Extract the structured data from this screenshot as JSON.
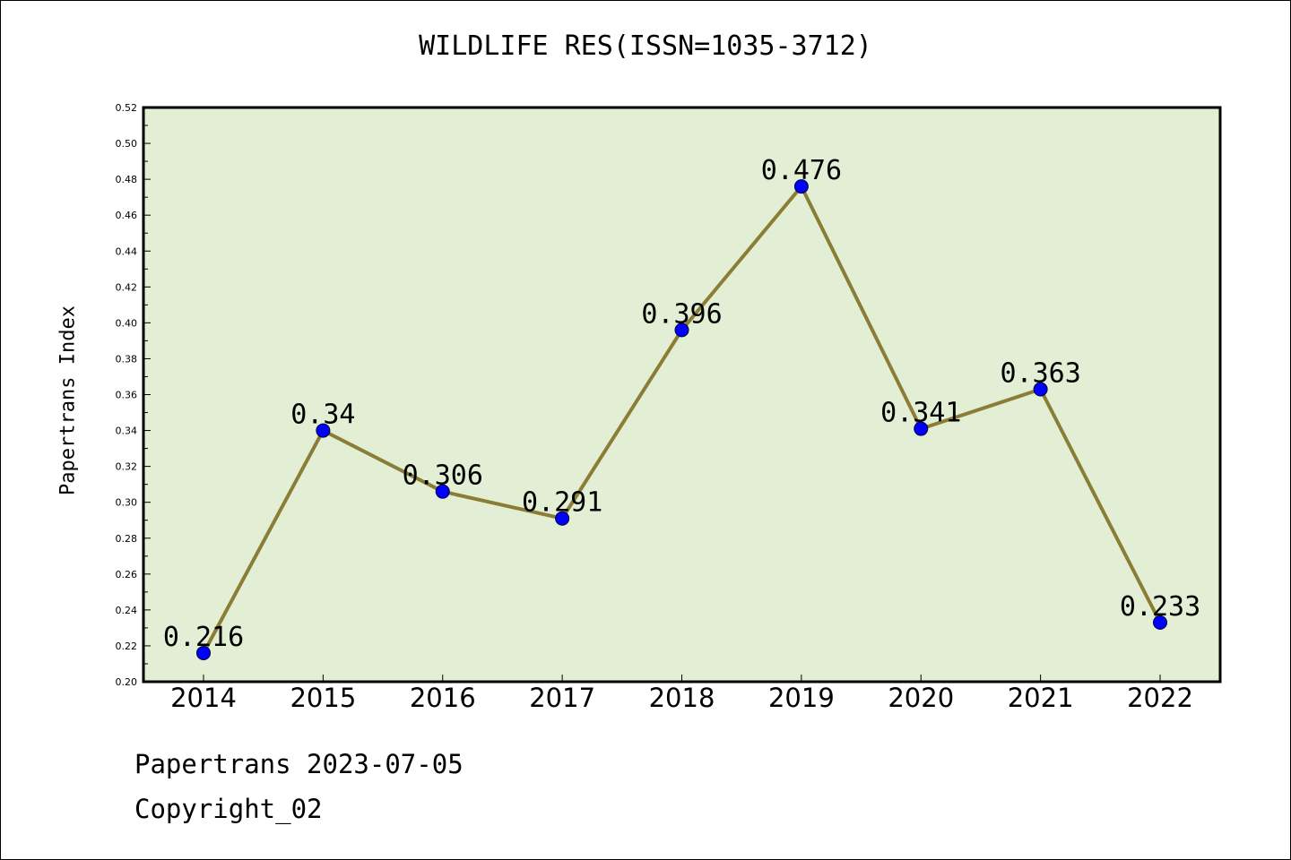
{
  "chart_data": {
    "type": "line",
    "title": "WILDLIFE RES(ISSN=1035-3712)",
    "ylabel": "Papertrans Index",
    "xlabel": "",
    "categories": [
      "2014",
      "2015",
      "2016",
      "2017",
      "2018",
      "2019",
      "2020",
      "2021",
      "2022"
    ],
    "values": [
      0.216,
      0.34,
      0.306,
      0.291,
      0.396,
      0.476,
      0.341,
      0.363,
      0.233
    ],
    "data_labels": [
      "0.216",
      "0.34",
      "0.306",
      "0.291",
      "0.396",
      "0.476",
      "0.341",
      "0.363",
      "0.233"
    ],
    "ylim": [
      0.2,
      0.52
    ],
    "yticks": [
      "0.20",
      "0.22",
      "0.24",
      "0.26",
      "0.28",
      "0.30",
      "0.32",
      "0.34",
      "0.36",
      "0.38",
      "0.40",
      "0.42",
      "0.44",
      "0.46",
      "0.48",
      "0.50",
      "0.52"
    ],
    "grid": false,
    "legend": "none",
    "colors": {
      "plot_background": "#e2efd5",
      "line": "#8b7d35",
      "marker": "#0000ff",
      "marker_edge": "#000033"
    }
  },
  "footer": {
    "line1": "Papertrans 2023-07-05",
    "line2": "Copyright_02"
  }
}
